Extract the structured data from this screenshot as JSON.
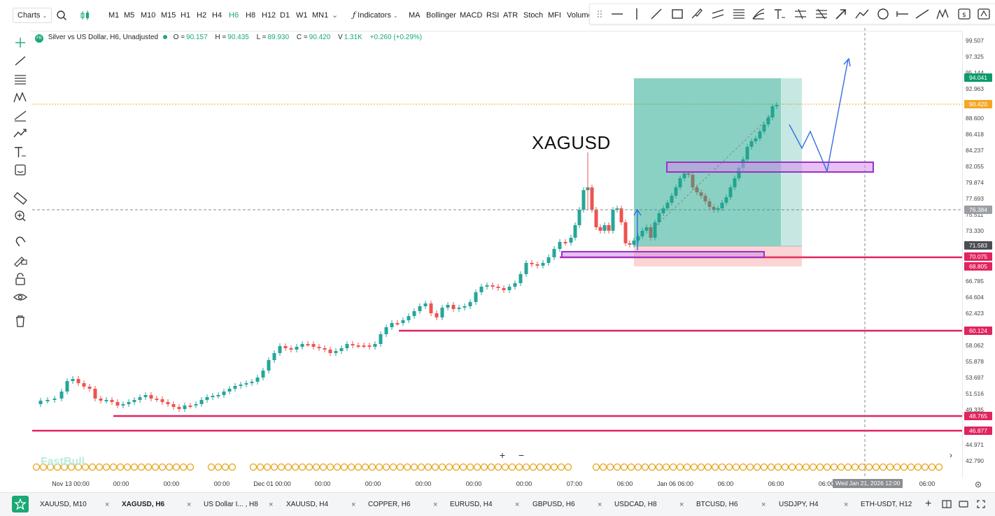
{
  "toolbar": {
    "charts_label": "Charts",
    "timeframes": [
      "M1",
      "M5",
      "M10",
      "M15",
      "H1",
      "H2",
      "H4",
      "H6",
      "H8",
      "H12",
      "D1",
      "W1",
      "MN1"
    ],
    "active_timeframe": "H6",
    "indicators_label": "Indicators",
    "indicators": [
      "MA",
      "Bollinger",
      "MACD",
      "RSI",
      "ATR",
      "Stoch",
      "MFI",
      "Volume"
    ]
  },
  "info": {
    "badge": "FB",
    "symbol_title": "Silver vs US Dollar, H6, Unadjusted",
    "open_label": "O =",
    "open": "90.157",
    "high_label": "H =",
    "high": "90.435",
    "low_label": "L =",
    "low": "89.930",
    "close_label": "C =",
    "close": "90.420",
    "volume_label": "V",
    "volume": "1.31K",
    "change": "+0.260 (+0.29%)"
  },
  "chart_label": "XAGUSD",
  "watermark": "FastBull",
  "yaxis": {
    "labels": [
      "99.507",
      "97.325",
      "95.144",
      "92.963",
      "88.600",
      "86.418",
      "84.237",
      "82.055",
      "79.874",
      "77.693",
      "75.511",
      "73.330",
      "66.785",
      "64.604",
      "62.423",
      "58.062",
      "55.878",
      "53.697",
      "51.516",
      "49.335",
      "44.971",
      "42.790"
    ],
    "badges": [
      {
        "text": "94.041",
        "color": "#0d9b6b"
      },
      {
        "text": "90.420",
        "color": "#f5a623"
      },
      {
        "text": "76.384",
        "color": "#9b9ea3"
      },
      {
        "text": "71.583",
        "color": "#4a4d52"
      },
      {
        "text": "70.075",
        "color": "#e0245e"
      },
      {
        "text": "68.805",
        "color": "#e0245e"
      },
      {
        "text": "60.124",
        "color": "#e0245e"
      },
      {
        "text": "48.765",
        "color": "#e0245e"
      },
      {
        "text": "46.877",
        "color": "#e0245e"
      }
    ]
  },
  "xaxis": {
    "labels": [
      "Nov 13 00:00",
      "00:00",
      "00:00",
      "00:00",
      "Dec 01 00:00",
      "00:00",
      "00:00",
      "00:00",
      "00:00",
      "00:00",
      "07:00",
      "06:00",
      "Jan 06 06:00",
      "06:00",
      "06:00",
      "06:00",
      "06:00"
    ],
    "crosshair_label": "Wed Jan 21, 2026 12:00"
  },
  "tabs": [
    {
      "label": "XAUUSD, M10"
    },
    {
      "label": "XAGUSD, H6",
      "active": true
    },
    {
      "label": "US Dollar I... , H8"
    },
    {
      "label": "XAUUSD, H4"
    },
    {
      "label": "COPPER, H6"
    },
    {
      "label": "EURUSD, H4"
    },
    {
      "label": "GBPUSD, H6"
    },
    {
      "label": "USDCAD, H8"
    },
    {
      "label": "BTCUSD, H6"
    },
    {
      "label": "USDJPY, H4"
    },
    {
      "label": "ETH-USDT, H12"
    }
  ],
  "colors": {
    "bull": "#26a69a",
    "bear": "#ef5350",
    "level_line": "#e0245e",
    "zone_purple": "#9b30c8",
    "accent": "#19a974"
  }
}
